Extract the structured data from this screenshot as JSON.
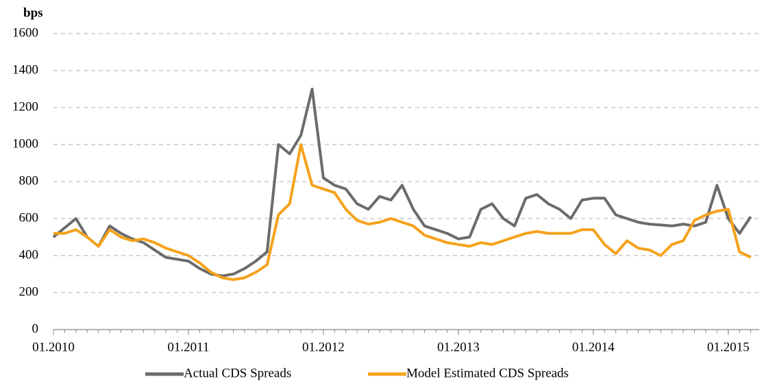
{
  "chart_data": {
    "type": "line",
    "ylabel": "bps",
    "x": [
      "2010-01",
      "2010-02",
      "2010-03",
      "2010-04",
      "2010-05",
      "2010-06",
      "2010-07",
      "2010-08",
      "2010-09",
      "2010-10",
      "2010-11",
      "2010-12",
      "2011-01",
      "2011-02",
      "2011-03",
      "2011-04",
      "2011-05",
      "2011-06",
      "2011-07",
      "2011-08",
      "2011-09",
      "2011-10",
      "2011-11",
      "2011-12",
      "2012-01",
      "2012-02",
      "2012-03",
      "2012-04",
      "2012-05",
      "2012-06",
      "2012-07",
      "2012-08",
      "2012-09",
      "2012-10",
      "2012-11",
      "2012-12",
      "2013-01",
      "2013-02",
      "2013-03",
      "2013-04",
      "2013-05",
      "2013-06",
      "2013-07",
      "2013-08",
      "2013-09",
      "2013-10",
      "2013-11",
      "2013-12",
      "2014-01",
      "2014-02",
      "2014-03",
      "2014-04",
      "2014-05",
      "2014-06",
      "2014-07",
      "2014-08",
      "2014-09",
      "2014-10",
      "2014-11",
      "2014-12",
      "2015-01",
      "2015-02",
      "2015-03"
    ],
    "series": [
      {
        "name": "Actual CDS Spreads",
        "color": "#6b6b6b",
        "values": [
          500,
          550,
          600,
          500,
          450,
          560,
          520,
          490,
          470,
          430,
          390,
          380,
          370,
          330,
          300,
          290,
          300,
          330,
          370,
          420,
          1000,
          950,
          1050,
          1300,
          820,
          780,
          760,
          680,
          650,
          720,
          700,
          780,
          650,
          560,
          540,
          520,
          490,
          500,
          650,
          680,
          600,
          560,
          710,
          730,
          680,
          650,
          600,
          700,
          710,
          710,
          620,
          600,
          580,
          570,
          565,
          560,
          570,
          560,
          580,
          780,
          600,
          520,
          610
        ]
      },
      {
        "name": "Model Estimated CDS Spreads",
        "color": "#f5a21b",
        "values": [
          520,
          520,
          540,
          500,
          450,
          540,
          500,
          480,
          490,
          470,
          440,
          420,
          400,
          360,
          310,
          280,
          270,
          280,
          310,
          350,
          620,
          680,
          1000,
          780,
          760,
          740,
          650,
          590,
          570,
          580,
          600,
          580,
          560,
          510,
          490,
          470,
          460,
          450,
          470,
          460,
          480,
          500,
          520,
          530,
          520,
          520,
          520,
          540,
          540,
          460,
          410,
          480,
          440,
          430,
          400,
          460,
          480,
          590,
          620,
          640,
          650,
          420,
          390
        ]
      }
    ],
    "xlim": [
      "2010-01",
      "2015-04"
    ],
    "xticks": [
      {
        "value": "2010-01",
        "label": "01.2010"
      },
      {
        "value": "2011-01",
        "label": "01.2011"
      },
      {
        "value": "2012-01",
        "label": "01.2012"
      },
      {
        "value": "2013-01",
        "label": "01.2013"
      },
      {
        "value": "2014-01",
        "label": "01.2014"
      },
      {
        "value": "2015-01",
        "label": "01.2015"
      }
    ],
    "ylim": [
      0,
      1600
    ],
    "yticks": [
      0,
      200,
      400,
      600,
      800,
      1000,
      1200,
      1400,
      1600
    ],
    "grid": true,
    "legend": "bottom"
  }
}
